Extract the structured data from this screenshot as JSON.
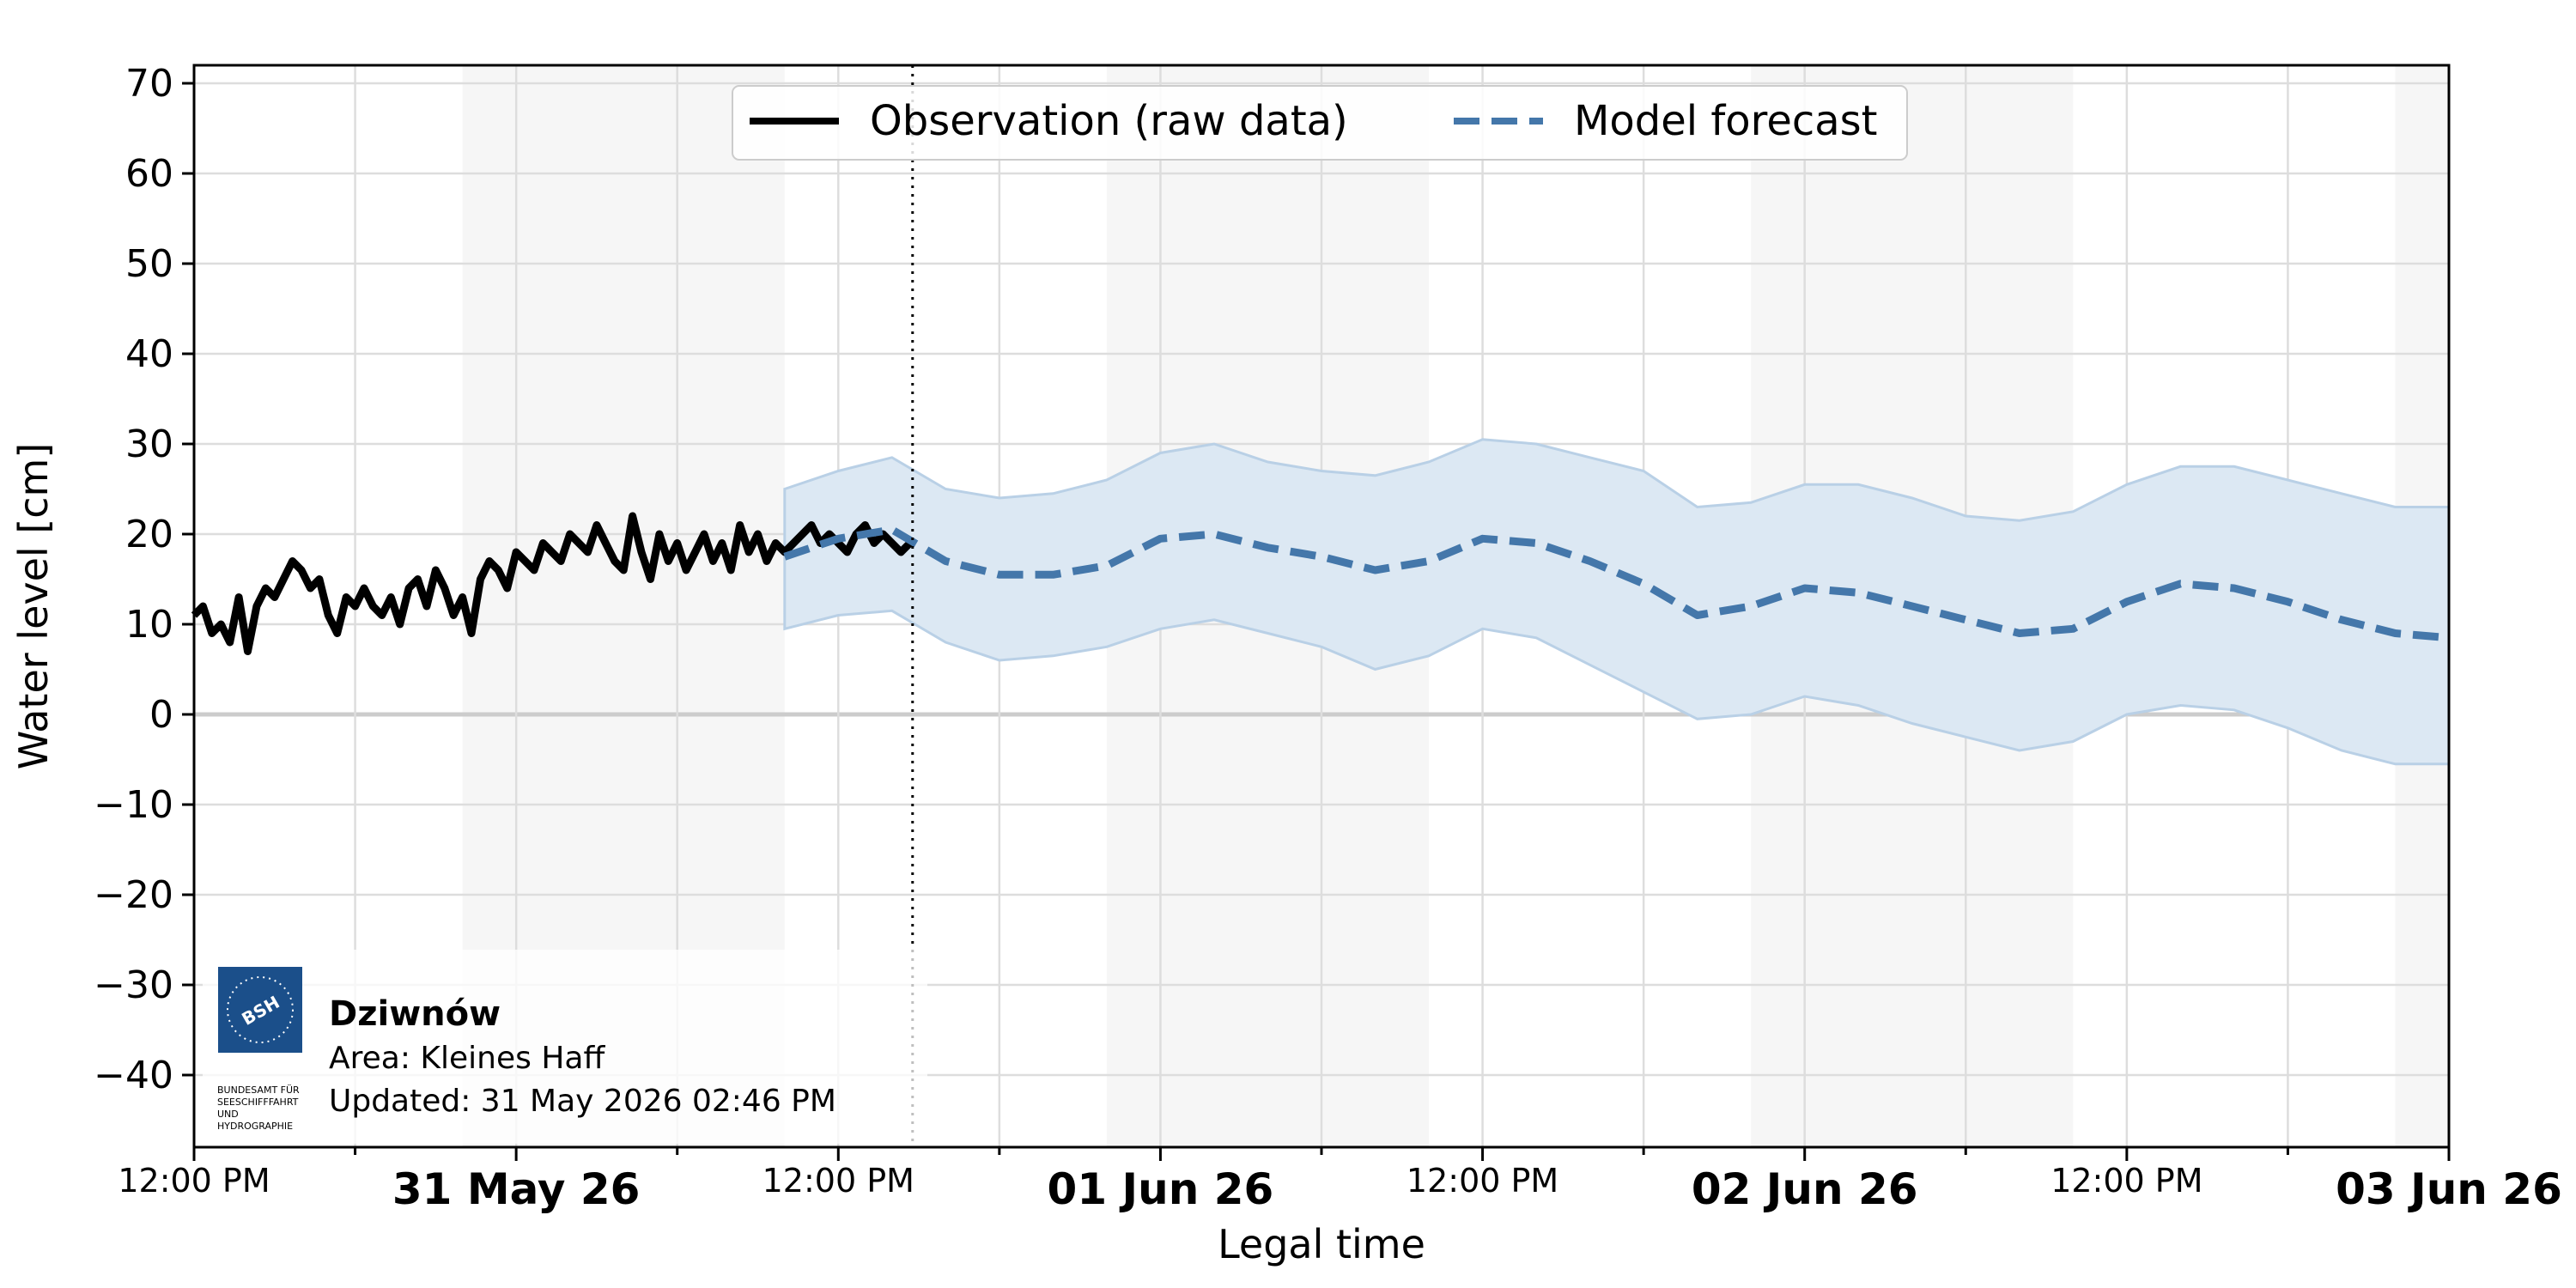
{
  "chart_data": {
    "type": "line",
    "title": "",
    "xlabel": "Legal time",
    "ylabel": "Water level [cm]",
    "ylim": [
      -48,
      72
    ],
    "yticks": [
      70,
      60,
      50,
      40,
      30,
      20,
      10,
      0,
      -10,
      -20,
      -30,
      -40
    ],
    "ytick_labels": [
      "70",
      "60",
      "50",
      "40",
      "30",
      "20",
      "10",
      "0",
      "−10",
      "−20",
      "−30",
      "−40"
    ],
    "xlim": [
      "2026-05-30T12:00",
      "2026-06-03T00:00"
    ],
    "xticks_major": [
      {
        "t": "2026-05-31T00:00",
        "label": "31 May 26"
      },
      {
        "t": "2026-06-01T00:00",
        "label": "01 Jun 26"
      },
      {
        "t": "2026-06-02T00:00",
        "label": "02 Jun 26"
      },
      {
        "t": "2026-06-03T00:00",
        "label": "03 Jun 26"
      }
    ],
    "xticks_minor": [
      {
        "t": "2026-05-30T12:00",
        "label": "12:00 PM"
      },
      {
        "t": "2026-05-31T12:00",
        "label": "12:00 PM"
      },
      {
        "t": "2026-06-01T12:00",
        "label": "12:00 PM"
      },
      {
        "t": "2026-06-02T12:00",
        "label": "12:00 PM"
      }
    ],
    "grid": true,
    "now_marker": "2026-05-31T14:46",
    "night_bands": [
      [
        "2026-05-30T22:00",
        "2026-05-31T10:00"
      ],
      [
        "2026-05-31T22:00",
        "2026-06-01T10:00"
      ],
      [
        "2026-06-01T22:00",
        "2026-06-02T10:00"
      ],
      [
        "2026-06-02T22:00",
        "2026-06-03T10:00"
      ]
    ],
    "legend": {
      "placement": "top-center",
      "entries": [
        {
          "label": "Observation (raw data)",
          "style": "solid",
          "color": "#000000"
        },
        {
          "label": "Model forecast",
          "style": "dashed",
          "color": "#4477aa"
        }
      ]
    },
    "series": [
      {
        "name": "Observation (raw data)",
        "color": "#000000",
        "x": [
          "2026-05-30T12:00",
          "2026-05-30T12:20",
          "2026-05-30T12:40",
          "2026-05-30T13:00",
          "2026-05-30T13:20",
          "2026-05-30T13:40",
          "2026-05-30T14:00",
          "2026-05-30T14:20",
          "2026-05-30T14:40",
          "2026-05-30T15:00",
          "2026-05-30T15:20",
          "2026-05-30T15:40",
          "2026-05-30T16:00",
          "2026-05-30T16:20",
          "2026-05-30T16:40",
          "2026-05-30T17:00",
          "2026-05-30T17:20",
          "2026-05-30T17:40",
          "2026-05-30T18:00",
          "2026-05-30T18:20",
          "2026-05-30T18:40",
          "2026-05-30T19:00",
          "2026-05-30T19:20",
          "2026-05-30T19:40",
          "2026-05-30T20:00",
          "2026-05-30T20:20",
          "2026-05-30T20:40",
          "2026-05-30T21:00",
          "2026-05-30T21:20",
          "2026-05-30T21:40",
          "2026-05-30T22:00",
          "2026-05-30T22:20",
          "2026-05-30T22:40",
          "2026-05-30T23:00",
          "2026-05-30T23:20",
          "2026-05-30T23:40",
          "2026-05-31T00:00",
          "2026-05-31T00:20",
          "2026-05-31T00:40",
          "2026-05-31T01:00",
          "2026-05-31T01:20",
          "2026-05-31T01:40",
          "2026-05-31T02:00",
          "2026-05-31T02:20",
          "2026-05-31T02:40",
          "2026-05-31T03:00",
          "2026-05-31T03:20",
          "2026-05-31T03:40",
          "2026-05-31T04:00",
          "2026-05-31T04:20",
          "2026-05-31T04:40",
          "2026-05-31T05:00",
          "2026-05-31T05:20",
          "2026-05-31T05:40",
          "2026-05-31T06:00",
          "2026-05-31T06:20",
          "2026-05-31T06:40",
          "2026-05-31T07:00",
          "2026-05-31T07:20",
          "2026-05-31T07:40",
          "2026-05-31T08:00",
          "2026-05-31T08:20",
          "2026-05-31T08:40",
          "2026-05-31T09:00",
          "2026-05-31T09:20",
          "2026-05-31T09:40",
          "2026-05-31T10:00",
          "2026-05-31T10:20",
          "2026-05-31T10:40",
          "2026-05-31T11:00",
          "2026-05-31T11:20",
          "2026-05-31T11:40",
          "2026-05-31T12:00",
          "2026-05-31T12:20",
          "2026-05-31T12:40",
          "2026-05-31T13:00",
          "2026-05-31T13:20",
          "2026-05-31T13:40",
          "2026-05-31T14:00",
          "2026-05-31T14:20",
          "2026-05-31T14:40"
        ],
        "y": [
          11,
          12,
          9,
          10,
          8,
          13,
          7,
          12,
          14,
          13,
          15,
          17,
          16,
          14,
          15,
          11,
          9,
          13,
          12,
          14,
          12,
          11,
          13,
          10,
          14,
          15,
          12,
          16,
          14,
          11,
          13,
          9,
          15,
          17,
          16,
          14,
          18,
          17,
          16,
          19,
          18,
          17,
          20,
          19,
          18,
          21,
          19,
          17,
          16,
          22,
          18,
          15,
          20,
          17,
          19,
          16,
          18,
          20,
          17,
          19,
          16,
          21,
          18,
          20,
          17,
          19,
          18,
          19,
          20,
          21,
          19,
          20,
          19,
          18,
          20,
          21,
          19,
          20,
          19,
          18,
          19
        ]
      },
      {
        "name": "Model forecast",
        "color": "#4477aa",
        "x": [
          "2026-05-31T10:00",
          "2026-05-31T12:00",
          "2026-05-31T14:00",
          "2026-05-31T16:00",
          "2026-05-31T18:00",
          "2026-05-31T20:00",
          "2026-05-31T22:00",
          "2026-06-01T00:00",
          "2026-06-01T02:00",
          "2026-06-01T04:00",
          "2026-06-01T06:00",
          "2026-06-01T08:00",
          "2026-06-01T10:00",
          "2026-06-01T12:00",
          "2026-06-01T14:00",
          "2026-06-01T16:00",
          "2026-06-01T18:00",
          "2026-06-01T20:00",
          "2026-06-01T22:00",
          "2026-06-02T00:00",
          "2026-06-02T02:00",
          "2026-06-02T04:00",
          "2026-06-02T06:00",
          "2026-06-02T08:00",
          "2026-06-02T10:00",
          "2026-06-02T12:00",
          "2026-06-02T14:00",
          "2026-06-02T16:00",
          "2026-06-02T18:00",
          "2026-06-02T20:00",
          "2026-06-02T22:00",
          "2026-06-03T00:00"
        ],
        "y": [
          17.5,
          19.5,
          20.5,
          17,
          15.5,
          15.5,
          16.5,
          19.5,
          20,
          18.5,
          17.5,
          16,
          17,
          19.5,
          19,
          17,
          14.5,
          11,
          12,
          14,
          13.5,
          12,
          10.5,
          9,
          9.5,
          12.5,
          14.5,
          14,
          12.5,
          10.5,
          9,
          8.5
        ],
        "upper": [
          25,
          27,
          28.5,
          25,
          24,
          24.5,
          26,
          29,
          30,
          28,
          27,
          26.5,
          28,
          30.5,
          30,
          28.5,
          27,
          23,
          23.5,
          25.5,
          25.5,
          24,
          22,
          21.5,
          22.5,
          25.5,
          27.5,
          27.5,
          26,
          24.5,
          23,
          23
        ],
        "lower": [
          9.5,
          11,
          11.5,
          8,
          6,
          6.5,
          7.5,
          9.5,
          10.5,
          9,
          7.5,
          5,
          6.5,
          9.5,
          8.5,
          5.5,
          2.5,
          -0.5,
          0,
          2,
          1,
          -1,
          -2.5,
          -4,
          -3,
          0,
          1,
          0.5,
          -1.5,
          -4,
          -5.5,
          -5.5
        ]
      }
    ]
  },
  "info_box": {
    "station": "Dziwnów",
    "area": "Area: Kleines Haff",
    "updated": "Updated: 31 May 2026 02:46 PM",
    "logo_abbr": "BSH",
    "logo_lines": [
      "BUNDESAMT FÜR",
      "SEESCHIFFFAHRT",
      "UND",
      "HYDROGRAPHIE"
    ]
  },
  "colors": {
    "observation": "#000000",
    "forecast": "#4477aa",
    "band": "#dce8f3",
    "band_edge": "#b9d0e6",
    "night": "#f6f6f6",
    "grid": "#dddddd",
    "logo_blue": "#1b4f8a"
  }
}
